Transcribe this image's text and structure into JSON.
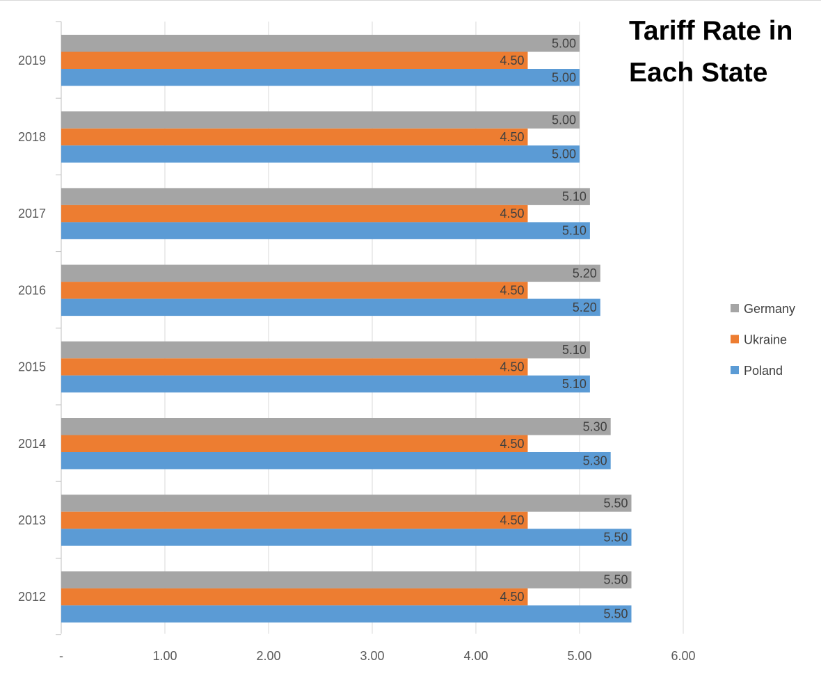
{
  "chart_data": {
    "type": "bar",
    "orientation": "horizontal",
    "title_lines": [
      "Tariff Rate in",
      "Each State"
    ],
    "categories": [
      "2019",
      "2018",
      "2017",
      "2016",
      "2015",
      "2014",
      "2013",
      "2012"
    ],
    "series": [
      {
        "name": "Germany",
        "color": "#a5a5a5",
        "values": [
          5.0,
          5.0,
          5.1,
          5.2,
          5.1,
          5.3,
          5.5,
          5.5
        ]
      },
      {
        "name": "Ukraine",
        "color": "#ed7d31",
        "values": [
          4.5,
          4.5,
          4.5,
          4.5,
          4.5,
          4.5,
          4.5,
          4.5
        ]
      },
      {
        "name": "Poland",
        "color": "#5b9bd5",
        "values": [
          5.0,
          5.0,
          5.1,
          5.2,
          5.1,
          5.3,
          5.5,
          5.5
        ]
      }
    ],
    "x_ticks": [
      "-",
      "1.00",
      "2.00",
      "3.00",
      "4.00",
      "5.00",
      "6.00"
    ],
    "xlim": [
      0,
      6
    ],
    "grid": true,
    "legend_position": "right"
  }
}
